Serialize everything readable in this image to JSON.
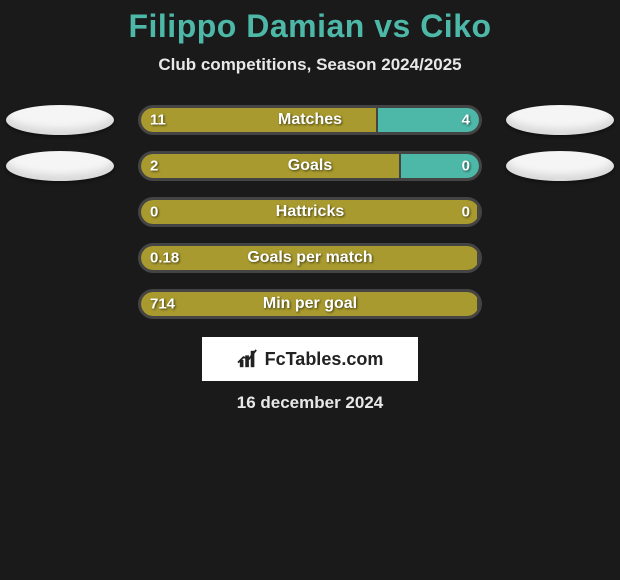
{
  "title": "Filippo Damian vs Ciko",
  "subtitle": "Club competitions, Season 2024/2025",
  "colors": {
    "background": "#1a1a1a",
    "title_color": "#4db8a8",
    "text_color": "#e8e8e8",
    "bar_left_color": "#a89a2e",
    "bar_right_color": "#4db8a8",
    "track_border": "#444444",
    "badge_bg": "#f5f5f5"
  },
  "stats": [
    {
      "label": "Matches",
      "left_val": "11",
      "right_val": "4",
      "left_pct": 70,
      "show_badges": true
    },
    {
      "label": "Goals",
      "left_val": "2",
      "right_val": "0",
      "left_pct": 77,
      "show_badges": true
    },
    {
      "label": "Hattricks",
      "left_val": "0",
      "right_val": "0",
      "left_pct": 100,
      "show_badges": false
    },
    {
      "label": "Goals per match",
      "left_val": "0.18",
      "right_val": "",
      "left_pct": 100,
      "show_badges": false
    },
    {
      "label": "Min per goal",
      "left_val": "714",
      "right_val": "",
      "left_pct": 100,
      "show_badges": false
    }
  ],
  "source": "FcTables.com",
  "date": "16 december 2024"
}
